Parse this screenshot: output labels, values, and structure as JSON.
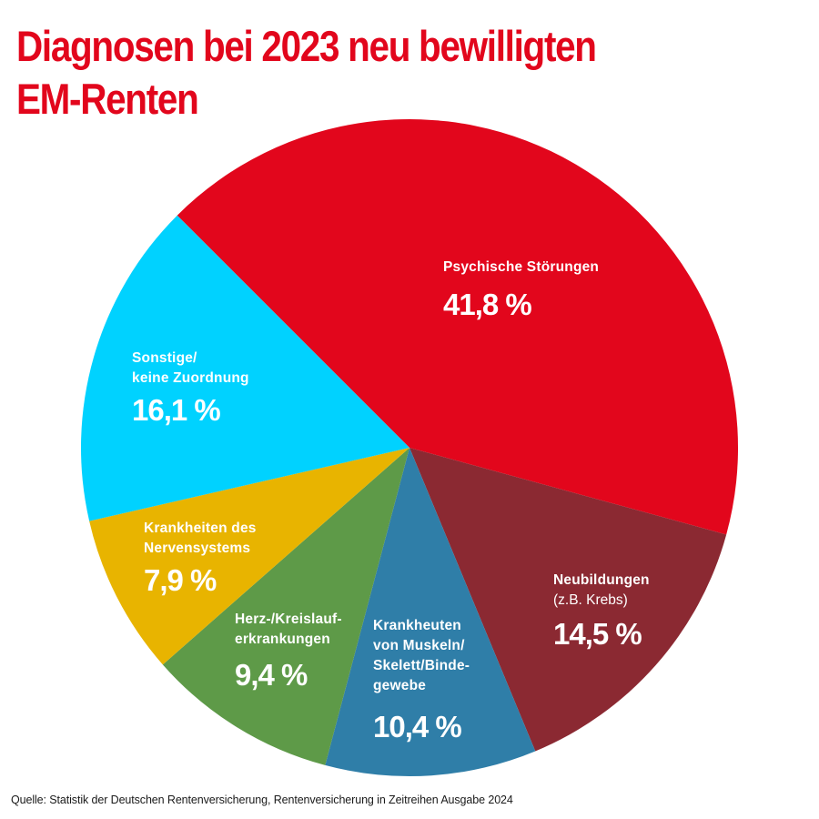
{
  "header": {
    "title_line1": "Diagnosen bei 2023 neu bewilligten",
    "title_line2": "EM-Renten"
  },
  "footer": {
    "source": "Quelle: Statistik der Deutschen Rentenversicherung, Rentenversicherung in Zeitreihen Ausgabe 2024"
  },
  "labels": {
    "psychische": {
      "name": "Psychische Störungen",
      "pct": "41,8 %"
    },
    "neubildungen": {
      "name": "Neubildungen",
      "sub": "(z.B. Krebs)",
      "pct": "14,5 %"
    },
    "muskeln": {
      "name": "Krankheuten\nvon Muskeln/\nSkelett/Binde-\ngewebe",
      "pct": "10,4 %"
    },
    "herz": {
      "name": "Herz-/Kreislauf-\nerkrankungen",
      "pct": "9,4 %"
    },
    "nerven": {
      "name": "Krankheiten des\nNervensystems",
      "pct": "7,9 %"
    },
    "sonstige": {
      "name": "Sonstige/\nkeine Zuordnung",
      "pct": "16,1 %"
    }
  },
  "colors": {
    "title": "#e2061c",
    "psychische": "#e2061c",
    "neubildungen": "#8b2932",
    "muskeln": "#2f7ea8",
    "herz": "#5e9a48",
    "nerven": "#e8b400",
    "sonstige": "#00d2ff"
  },
  "chart_data": {
    "type": "pie",
    "title": "Diagnosen bei 2023 neu bewilligten EM-Renten",
    "categories": [
      "Psychische Störungen",
      "Neubildungen (z.B. Krebs)",
      "Krankheuten von Muskeln/Skelett/Bindegewebe",
      "Herz-/Kreislauferkrankungen",
      "Krankheiten des Nervensystems",
      "Sonstige/keine Zuordnung"
    ],
    "values": [
      41.8,
      14.5,
      10.4,
      9.4,
      7.9,
      16.1
    ],
    "unit": "%",
    "colors": [
      "#e2061c",
      "#8b2932",
      "#2f7ea8",
      "#5e9a48",
      "#e8b400",
      "#00d2ff"
    ],
    "start_angle_deg": -135,
    "direction": "clockwise",
    "center": [
      450,
      492
    ],
    "radius": 361,
    "source": "Quelle: Statistik der Deutschen Rentenversicherung, Rentenversicherung in Zeitreihen Ausgabe 2024"
  }
}
